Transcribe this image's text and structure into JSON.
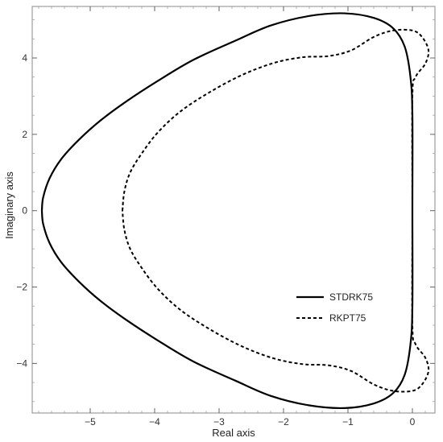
{
  "chart_data": {
    "type": "line",
    "title": "",
    "xlabel": "Real axis",
    "ylabel": "Imaginary axis",
    "xlim": [
      -5.9,
      0.35
    ],
    "ylim": [
      -5.3,
      5.35
    ],
    "x_ticks": [
      -5,
      -4,
      -3,
      -2,
      -1,
      0
    ],
    "y_ticks": [
      -4,
      -2,
      0,
      2,
      4
    ],
    "grid": false,
    "legend_position": "lower-right",
    "colors": {
      "line": "#000000",
      "frame": "#888888"
    },
    "series": [
      {
        "name": "STDRK75",
        "style": "solid",
        "points": [
          [
            -5.75,
            0.0
          ],
          [
            -5.73,
            0.35
          ],
          [
            -5.63,
            0.85
          ],
          [
            -5.45,
            1.35
          ],
          [
            -5.18,
            1.85
          ],
          [
            -4.85,
            2.35
          ],
          [
            -4.45,
            2.85
          ],
          [
            -3.95,
            3.4
          ],
          [
            -3.4,
            3.95
          ],
          [
            -2.75,
            4.45
          ],
          [
            -2.2,
            4.85
          ],
          [
            -1.6,
            5.1
          ],
          [
            -1.05,
            5.17
          ],
          [
            -0.6,
            5.05
          ],
          [
            -0.3,
            4.78
          ],
          [
            -0.12,
            4.3
          ],
          [
            -0.03,
            3.5
          ],
          [
            0.0,
            2.5
          ],
          [
            0.0,
            0.0
          ],
          [
            0.0,
            -2.5
          ],
          [
            -0.03,
            -3.5
          ],
          [
            -0.12,
            -4.3
          ],
          [
            -0.3,
            -4.78
          ],
          [
            -0.6,
            -5.05
          ],
          [
            -1.05,
            -5.17
          ],
          [
            -1.6,
            -5.1
          ],
          [
            -2.2,
            -4.85
          ],
          [
            -2.75,
            -4.45
          ],
          [
            -3.4,
            -3.95
          ],
          [
            -3.95,
            -3.4
          ],
          [
            -4.45,
            -2.85
          ],
          [
            -4.85,
            -2.35
          ],
          [
            -5.18,
            -1.85
          ],
          [
            -5.45,
            -1.35
          ],
          [
            -5.63,
            -0.85
          ],
          [
            -5.73,
            -0.35
          ],
          [
            -5.75,
            0.0
          ]
        ]
      },
      {
        "name": "RKPT75",
        "style": "dashed",
        "points": [
          [
            -4.5,
            0.0
          ],
          [
            -4.47,
            0.5
          ],
          [
            -4.38,
            1.0
          ],
          [
            -4.2,
            1.5
          ],
          [
            -3.95,
            2.05
          ],
          [
            -3.6,
            2.6
          ],
          [
            -3.15,
            3.1
          ],
          [
            -2.65,
            3.55
          ],
          [
            -2.15,
            3.87
          ],
          [
            -1.7,
            4.02
          ],
          [
            -1.3,
            4.05
          ],
          [
            -0.95,
            4.2
          ],
          [
            -0.6,
            4.55
          ],
          [
            -0.3,
            4.72
          ],
          [
            0.0,
            4.72
          ],
          [
            0.15,
            4.55
          ],
          [
            0.25,
            4.2
          ],
          [
            0.2,
            3.85
          ],
          [
            0.05,
            3.5
          ],
          [
            0.0,
            3.0
          ],
          [
            0.0,
            0.0
          ],
          [
            0.0,
            -3.0
          ],
          [
            0.05,
            -3.5
          ],
          [
            0.2,
            -3.85
          ],
          [
            0.25,
            -4.2
          ],
          [
            0.15,
            -4.55
          ],
          [
            0.0,
            -4.72
          ],
          [
            -0.3,
            -4.72
          ],
          [
            -0.6,
            -4.55
          ],
          [
            -0.95,
            -4.2
          ],
          [
            -1.3,
            -4.05
          ],
          [
            -1.7,
            -4.02
          ],
          [
            -2.15,
            -3.87
          ],
          [
            -2.65,
            -3.55
          ],
          [
            -3.15,
            -3.1
          ],
          [
            -3.6,
            -2.6
          ],
          [
            -3.95,
            -2.05
          ],
          [
            -4.2,
            -1.5
          ],
          [
            -4.38,
            -1.0
          ],
          [
            -4.47,
            -0.5
          ],
          [
            -4.5,
            0.0
          ]
        ]
      }
    ]
  }
}
